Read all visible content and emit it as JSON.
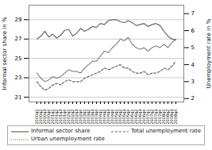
{
  "chart_data": {
    "type": "line",
    "ylabel": "Informal sector share in %",
    "y2label": "Unemployment rate in %",
    "categories": [
      "2000q1",
      "2000q2",
      "2000q3",
      "2000q4",
      "2001q1",
      "2001q2",
      "2001q3",
      "2001q4",
      "2002q1",
      "2002q2",
      "2002q3",
      "2002q4",
      "2003q1",
      "2003q2",
      "2003q3",
      "2003q4",
      "2004q1",
      "2004q2",
      "2004q3",
      "2004q4",
      "2005q1",
      "2005q2",
      "2005q3",
      "2005q4",
      "2006q1",
      "2006q2",
      "2006q3",
      "2006q4",
      "2007q1",
      "2007q2",
      "2007q3",
      "2007q4",
      "2008q1",
      "2008q2",
      "2008q3",
      "2008q4"
    ],
    "series": [
      {
        "name": "Informal sector share",
        "color": "#666666",
        "line_style": "solid",
        "values": [
          27.0,
          27.3,
          27.8,
          27.2,
          27.5,
          27.1,
          27.4,
          27.9,
          28.0,
          27.3,
          27.6,
          28.1,
          27.8,
          28.0,
          28.3,
          28.2,
          28.6,
          28.5,
          28.9,
          29.0,
          29.0,
          28.8,
          28.7,
          28.9,
          28.7,
          28.4,
          28.5,
          28.6,
          28.3,
          28.5,
          28.6,
          28.4,
          27.8,
          27.3,
          27.0,
          26.9
        ]
      },
      {
        "name": "Total unemployment rate",
        "color": "#666666",
        "line_style": "dashed",
        "axis": "y2",
        "values": [
          3.0,
          2.7,
          2.5,
          2.6,
          2.8,
          2.9,
          2.8,
          3.0,
          3.1,
          3.0,
          3.0,
          3.0,
          3.2,
          3.3,
          3.4,
          3.5,
          3.6,
          3.8,
          3.7,
          3.8,
          3.9,
          4.0,
          3.8,
          3.8,
          3.6,
          3.5,
          3.5,
          3.6,
          3.4,
          3.5,
          3.5,
          3.6,
          3.8,
          3.7,
          3.9,
          4.2
        ]
      },
      {
        "name": "Urban unemployment rate",
        "color": "#666666",
        "line_style": "dotted",
        "axis": "y2",
        "values": [
          3.5,
          3.2,
          3.0,
          3.1,
          3.3,
          3.2,
          3.3,
          3.5,
          3.7,
          3.6,
          3.6,
          3.5,
          3.8,
          4.0,
          4.2,
          4.2,
          4.5,
          4.8,
          4.7,
          5.0,
          5.2,
          5.5,
          5.4,
          5.6,
          5.2,
          5.0,
          4.9,
          5.0,
          4.8,
          5.0,
          5.1,
          5.0,
          5.2,
          5.0,
          5.3,
          5.5
        ]
      }
    ],
    "ylim": [
      20.5,
      30.5
    ],
    "yticks": [
      21,
      23,
      25,
      27,
      29
    ],
    "y2lim": [
      1.8,
      7.5
    ],
    "y2ticks": [
      2,
      3,
      4,
      5,
      6,
      7
    ],
    "grid": true,
    "legend": "bottom"
  }
}
